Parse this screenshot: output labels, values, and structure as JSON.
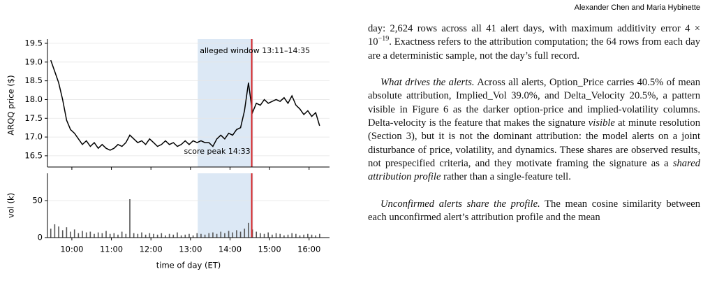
{
  "header": {
    "authors": "Alexander Chen and Maria Hybinette"
  },
  "chart_data": [
    {
      "type": "line",
      "ylabel": "ARQQ price ($)",
      "color": "#000000",
      "grid": true,
      "ylim": [
        16.2,
        19.5
      ],
      "yticks": [
        16.5,
        {
          "value": 17,
          "label": "17.0"
        },
        17.5,
        {
          "value": 18,
          "label": "18.0"
        },
        18.5,
        {
          "value": 19,
          "label": "19.0"
        },
        19.5
      ],
      "xlim": [
        563,
        991
      ],
      "x": [
        568,
        574,
        580,
        586,
        592,
        598,
        604,
        610,
        616,
        622,
        628,
        634,
        640,
        646,
        652,
        658,
        664,
        670,
        676,
        682,
        688,
        694,
        700,
        706,
        712,
        718,
        724,
        730,
        736,
        742,
        748,
        754,
        760,
        766,
        772,
        778,
        784,
        790,
        796,
        802,
        808,
        814,
        820,
        826,
        832,
        838,
        844,
        850,
        856,
        862,
        868,
        874,
        880,
        886,
        892,
        898,
        904,
        910,
        916,
        922,
        928,
        934,
        940,
        946,
        952,
        958,
        964,
        970,
        976
      ],
      "values": [
        19.05,
        18.75,
        18.45,
        18.0,
        17.45,
        17.2,
        17.1,
        16.95,
        16.8,
        16.9,
        16.75,
        16.85,
        16.7,
        16.8,
        16.7,
        16.65,
        16.7,
        16.8,
        16.75,
        16.85,
        17.05,
        16.95,
        16.85,
        16.9,
        16.8,
        16.95,
        16.85,
        16.75,
        16.8,
        16.9,
        16.8,
        16.85,
        16.75,
        16.8,
        16.9,
        16.8,
        16.9,
        16.85,
        16.9,
        16.85,
        16.85,
        16.75,
        16.95,
        17.05,
        16.95,
        17.1,
        17.05,
        17.2,
        17.25,
        17.7,
        18.45,
        17.65,
        17.9,
        17.85,
        18.0,
        17.9,
        17.95,
        18.0,
        17.95,
        18.05,
        17.9,
        18.1,
        17.85,
        17.75,
        17.6,
        17.7,
        17.55,
        17.65,
        17.3
      ],
      "window": [
        791,
        875
      ],
      "window_color": "#dce8f5",
      "window_label": "alleged window 13:11–14:35",
      "peak": 873,
      "peak_color": "#d62728",
      "peak_label": "score peak 14:33"
    },
    {
      "type": "bar",
      "ylabel": "vol (k)",
      "xlabel": "time of day (ET)",
      "color": "#555555",
      "grid": true,
      "ylim": [
        0,
        87
      ],
      "yticks": [
        0,
        50
      ],
      "xlim": [
        563,
        991
      ],
      "xticks": [
        {
          "value": 600,
          "label": "10:00"
        },
        {
          "value": 660,
          "label": "11:00"
        },
        {
          "value": 720,
          "label": "12:00"
        },
        {
          "value": 780,
          "label": "13:00"
        },
        {
          "value": 840,
          "label": "14:00"
        },
        {
          "value": 900,
          "label": "15:00"
        },
        {
          "value": 960,
          "label": "16:00"
        }
      ],
      "x": [
        568,
        574,
        580,
        586,
        592,
        598,
        604,
        610,
        616,
        622,
        628,
        634,
        640,
        646,
        652,
        658,
        664,
        670,
        676,
        682,
        688,
        694,
        700,
        706,
        712,
        718,
        724,
        730,
        736,
        742,
        748,
        754,
        760,
        766,
        772,
        778,
        784,
        790,
        796,
        802,
        808,
        814,
        820,
        826,
        832,
        838,
        844,
        850,
        856,
        862,
        868,
        874,
        880,
        886,
        892,
        898,
        904,
        910,
        916,
        922,
        928,
        934,
        940,
        946,
        952,
        958,
        964,
        970,
        976
      ],
      "values": [
        12,
        18,
        15,
        10,
        14,
        8,
        11,
        6,
        9,
        7,
        8,
        5,
        7,
        6,
        9,
        5,
        6,
        4,
        8,
        5,
        52,
        6,
        5,
        7,
        4,
        6,
        5,
        4,
        6,
        3,
        5,
        4,
        7,
        3,
        4,
        5,
        3,
        6,
        5,
        4,
        6,
        7,
        5,
        8,
        6,
        9,
        7,
        10,
        8,
        12,
        20,
        11,
        8,
        6,
        5,
        7,
        4,
        6,
        5,
        3,
        4,
        6,
        5,
        3,
        4,
        5,
        4,
        3,
        5
      ]
    }
  ],
  "text": {
    "paragraphs": [
      {
        "runs": [
          "day: 2,624 rows across all 41 alert days, with maximum additivity error 4 × 10",
          "−19",
          ". Exactness refers to the attribution computation; the 64 rows from each day are a deterministic sample, not the day’s full record."
        ]
      },
      {
        "runs": [
          "",
          "What drives the alerts.",
          " Across all alerts, Option_Price carries 40.5% of mean absolute attribution, Implied_Vol 39.0%, and Delta_Velocity 20.5%, a pattern visible in Figure 6 as the darker option-price and implied-volatility columns. Delta-velocity is the feature that makes the signature ",
          "visible",
          " at minute resolution (Section 3), but it is not the dominant attribution: the model alerts on a joint disturbance of price, volatility, and dynamics. These shares are observed results, not prespecified criteria, and they motivate framing the signature as a ",
          "shared attribution profile",
          " rather than a single-feature tell."
        ]
      },
      {
        "runs": [
          "",
          "Unconfirmed alerts share the profile.",
          " The mean cosine similarity between each unconfirmed alert’s attribution profile and the mean"
        ]
      }
    ]
  }
}
